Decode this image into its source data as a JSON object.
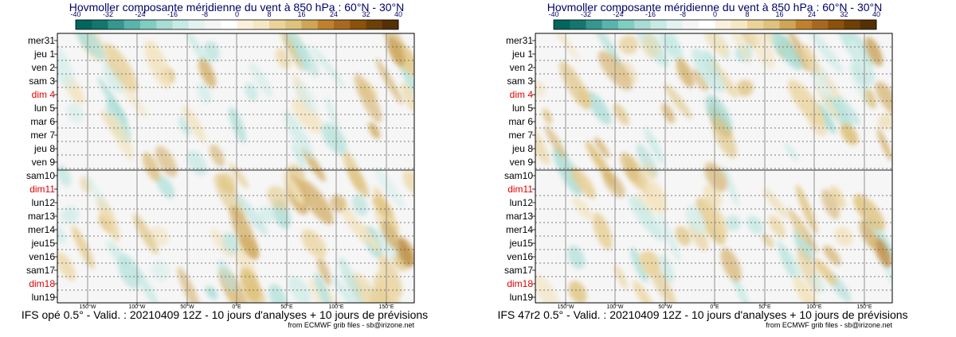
{
  "chart_data": [
    {
      "type": "heatmap",
      "title": "Hovmoller composante méridienne du vent à 850 hPa : 60°N - 30°N",
      "colorbar": {
        "ticks": [
          "-40",
          "-32",
          "-24",
          "-16",
          "-8",
          "0",
          "8",
          "16",
          "24",
          "32",
          "40"
        ],
        "colors": [
          "#01665e",
          "#14766e",
          "#35978f",
          "#5ab4ac",
          "#80cdc1",
          "#a8dcd4",
          "#c7eae5",
          "#e4f3f1",
          "#f5f5f5",
          "#ffffff",
          "#fbf0dc",
          "#f6e8c3",
          "#ecd399",
          "#dfc27d",
          "#cfa556",
          "#bf812d",
          "#a8691f",
          "#8c510a",
          "#6e3f07",
          "#543005"
        ]
      },
      "days": [
        "mer31",
        "jeu 1",
        "ven 2",
        "sam 3",
        "dim 4",
        "lun 5",
        "mar 6",
        "mer 7",
        "jeu 8",
        "ven 9",
        "sam10",
        "dim11",
        "lun12",
        "mar13",
        "mer14",
        "jeu15",
        "ven16",
        "sam17",
        "dim18",
        "lun19"
      ],
      "sundays": [
        "dim 4",
        "dim11",
        "dim18"
      ],
      "lon_labels": [
        "150°W",
        "100°W",
        "50°W",
        "0°E",
        "50°E",
        "100°E",
        "150°E"
      ],
      "analysis_forecast_split": "sam10",
      "footer": "IFS opé 0.5° - Valid. : 20210409 12Z - 10 jours d'analyses + 10 jours de prévisions",
      "credit": "from ECMWF grib files - sb@irizone.net"
    },
    {
      "type": "heatmap",
      "title": "Hovmoller composante méridienne du vent à 850 hPa : 60°N - 30°N",
      "colorbar": {
        "ticks": [
          "-40",
          "-32",
          "-24",
          "-16",
          "-8",
          "0",
          "8",
          "16",
          "24",
          "32",
          "40"
        ],
        "colors": [
          "#01665e",
          "#14766e",
          "#35978f",
          "#5ab4ac",
          "#80cdc1",
          "#a8dcd4",
          "#c7eae5",
          "#e4f3f1",
          "#f5f5f5",
          "#ffffff",
          "#fbf0dc",
          "#f6e8c3",
          "#ecd399",
          "#dfc27d",
          "#cfa556",
          "#bf812d",
          "#a8691f",
          "#8c510a",
          "#6e3f07",
          "#543005"
        ]
      },
      "days": [
        "mer31",
        "jeu 1",
        "ven 2",
        "sam 3",
        "dim 4",
        "lun 5",
        "mar 6",
        "mer 7",
        "jeu 8",
        "ven 9",
        "sam10",
        "dim11",
        "lun12",
        "mar13",
        "mer14",
        "jeu15",
        "ven16",
        "sam17",
        "dim18",
        "lun19"
      ],
      "sundays": [
        "dim 4",
        "dim11",
        "dim18"
      ],
      "lon_labels": [
        "150°W",
        "100°W",
        "50°W",
        "0°E",
        "50°E",
        "100°E",
        "150°E"
      ],
      "analysis_forecast_split": "sam10",
      "footer": "IFS 47r2 0.5° - Valid. : 20210409 12Z - 10 jours d'analyses + 10 jours de prévisions",
      "credit": "from ECMWF grib files - sb@irizone.net"
    }
  ]
}
